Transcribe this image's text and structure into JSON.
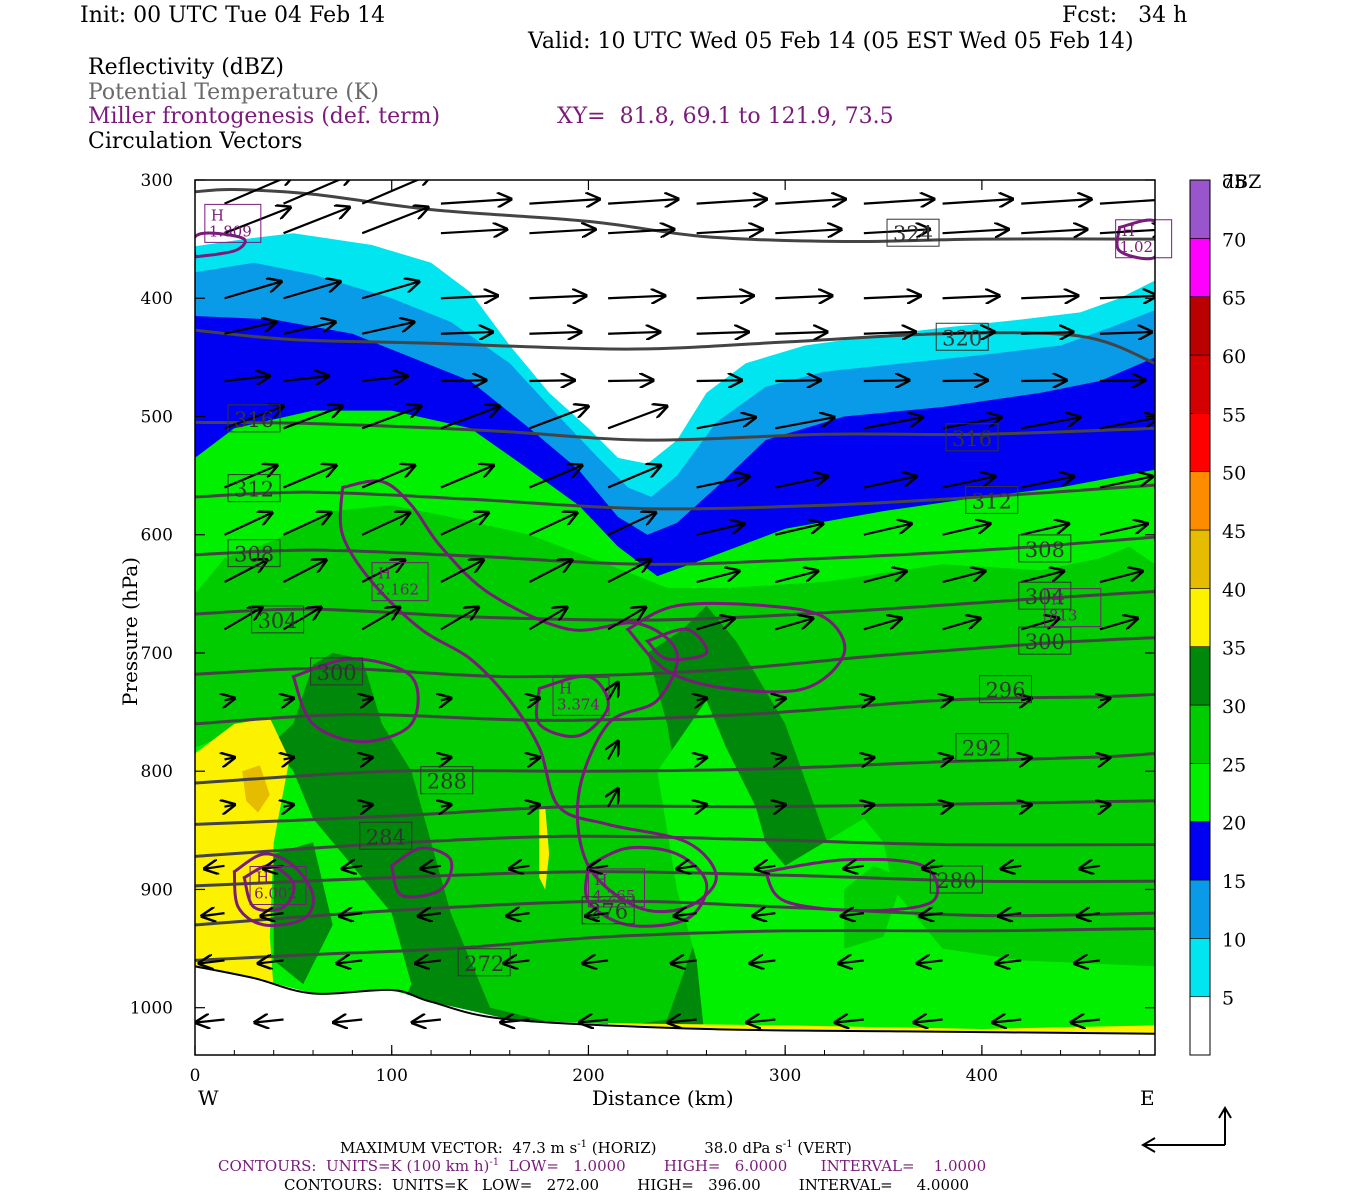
{
  "header": {
    "init": "Init: 00 UTC Tue 04 Feb 14",
    "fcst": "Fcst:   34 h",
    "valid": "Valid: 10 UTC Wed 05 Feb 14 (05 EST Wed 05 Feb 14)"
  },
  "fields": {
    "reflectivity": "Reflectivity (dBZ)",
    "theta": "Potential Temperature (K)",
    "miller": "Miller frontogenesis (def. term)",
    "xy": "XY=  81.8, 69.1 to 121.9, 73.5",
    "vectors": "Circulation Vectors"
  },
  "colors": {
    "theta_line": "#444444",
    "frontogenesis": "#7a1a7a",
    "vectors": "#000000"
  },
  "chart_data": {
    "type": "cross-section",
    "xlabel": "Distance (km)",
    "ylabel": "Pressure (hPa)",
    "xlim": [
      0,
      488
    ],
    "ylim": [
      1040,
      300
    ],
    "x_ticks": [
      "0",
      "100",
      "200",
      "300",
      "400"
    ],
    "x_tick_values": [
      0,
      100,
      200,
      300,
      400
    ],
    "y_ticks": [
      "300",
      "400",
      "500",
      "600",
      "700",
      "800",
      "900",
      "1000"
    ],
    "y_tick_values": [
      300,
      400,
      500,
      600,
      700,
      800,
      900,
      1000
    ],
    "west_label": "W",
    "east_label": "E",
    "colorbar": {
      "title": "dBZ",
      "levels": [
        "5",
        "10",
        "15",
        "20",
        "25",
        "30",
        "35",
        "40",
        "45",
        "50",
        "55",
        "60",
        "65",
        "70",
        "75"
      ],
      "colors": [
        "#ffffff",
        "#00e5f0",
        "#0a9be8",
        "#0000f2",
        "#00f000",
        "#00cc00",
        "#00880a",
        "#fcf200",
        "#e6bc00",
        "#ff8c00",
        "#ff0000",
        "#d40000",
        "#bb0000",
        "#ff00ff",
        "#9955cc"
      ]
    },
    "theta_contours": [
      {
        "label": "324",
        "value": 324,
        "points": [
          [
            0,
            310
          ],
          [
            20,
            308
          ],
          [
            60,
            312
          ],
          [
            120,
            325
          ],
          [
            200,
            335
          ],
          [
            260,
            348
          ],
          [
            330,
            352
          ],
          [
            400,
            350
          ],
          [
            488,
            350
          ]
        ],
        "label_at": [
          365,
          345
        ]
      },
      {
        "label": "320",
        "value": 320,
        "points": [
          [
            0,
            427
          ],
          [
            50,
            435
          ],
          [
            120,
            438
          ],
          [
            220,
            443
          ],
          [
            300,
            437
          ],
          [
            380,
            430
          ],
          [
            450,
            432
          ],
          [
            488,
            455
          ]
        ],
        "label_at": [
          390,
          433
        ]
      },
      {
        "label": "316",
        "value": 316,
        "points": [
          [
            0,
            505
          ],
          [
            60,
            506
          ],
          [
            150,
            512
          ],
          [
            230,
            520
          ],
          [
            320,
            515
          ],
          [
            400,
            515
          ],
          [
            488,
            510
          ]
        ],
        "label_at": [
          30,
          502
        ],
        "label2": "316",
        "label2_at": [
          395,
          518
        ]
      },
      {
        "label": "312",
        "value": 312,
        "points": [
          [
            0,
            568
          ],
          [
            60,
            564
          ],
          [
            140,
            570
          ],
          [
            230,
            578
          ],
          [
            320,
            575
          ],
          [
            400,
            568
          ],
          [
            488,
            558
          ]
        ],
        "label_at": [
          30,
          561
        ],
        "label2": "312",
        "label2_at": [
          405,
          571
        ]
      },
      {
        "label": "308",
        "value": 308,
        "points": [
          [
            0,
            617
          ],
          [
            60,
            613
          ],
          [
            140,
            618
          ],
          [
            230,
            625
          ],
          [
            320,
            620
          ],
          [
            410,
            612
          ],
          [
            488,
            602
          ]
        ],
        "label_at": [
          30,
          616
        ],
        "label2": "308",
        "label2_at": [
          432,
          612
        ]
      },
      {
        "label": "304",
        "value": 304,
        "points": [
          [
            0,
            667
          ],
          [
            60,
            663
          ],
          [
            150,
            670
          ],
          [
            240,
            672
          ],
          [
            330,
            665
          ],
          [
            420,
            655
          ],
          [
            488,
            648
          ]
        ],
        "label_at": [
          42,
          672
        ],
        "label2": "304",
        "label2_at": [
          432,
          652
        ]
      },
      {
        "label": "300",
        "value": 300,
        "points": [
          [
            0,
            718
          ],
          [
            70,
            713
          ],
          [
            160,
            720
          ],
          [
            260,
            715
          ],
          [
            350,
            702
          ],
          [
            430,
            692
          ],
          [
            488,
            687
          ]
        ],
        "label_at": [
          72,
          716
        ],
        "label2": "300",
        "label2_at": [
          432,
          690
        ]
      },
      {
        "label": "296",
        "value": 296,
        "points": [
          [
            0,
            760
          ],
          [
            80,
            752
          ],
          [
            180,
            757
          ],
          [
            280,
            752
          ],
          [
            380,
            740
          ],
          [
            460,
            737
          ],
          [
            488,
            735
          ]
        ],
        "label_at": [
          412,
          731
        ]
      },
      {
        "label": "292",
        "value": 292,
        "points": [
          [
            0,
            810
          ],
          [
            100,
            800
          ],
          [
            200,
            800
          ],
          [
            290,
            798
          ],
          [
            380,
            792
          ],
          [
            460,
            788
          ],
          [
            488,
            785
          ]
        ],
        "label_at": [
          400,
          780
        ]
      },
      {
        "label": "288",
        "value": 288,
        "points": [
          [
            0,
            845
          ],
          [
            100,
            838
          ],
          [
            190,
            830
          ],
          [
            290,
            830
          ],
          [
            380,
            828
          ],
          [
            488,
            825
          ]
        ],
        "label_at": [
          128,
          808
        ]
      },
      {
        "label": "284",
        "value": 284,
        "points": [
          [
            0,
            872
          ],
          [
            90,
            862
          ],
          [
            190,
            855
          ],
          [
            290,
            858
          ],
          [
            380,
            862
          ],
          [
            488,
            862
          ]
        ],
        "label_at": [
          97,
          855
        ]
      },
      {
        "label": "280",
        "value": 280,
        "points": [
          [
            0,
            897
          ],
          [
            100,
            890
          ],
          [
            200,
            885
          ],
          [
            300,
            888
          ],
          [
            400,
            893
          ],
          [
            488,
            893
          ]
        ],
        "label_at": [
          387,
          892
        ]
      },
      {
        "label": "276",
        "value": 276,
        "points": [
          [
            0,
            930
          ],
          [
            100,
            918
          ],
          [
            210,
            910
          ],
          [
            300,
            915
          ],
          [
            400,
            922
          ],
          [
            488,
            920
          ]
        ],
        "label_at": [
          210,
          918
        ]
      },
      {
        "label": "272",
        "value": 272,
        "points": [
          [
            0,
            960
          ],
          [
            60,
            955
          ],
          [
            130,
            950
          ],
          [
            210,
            940
          ],
          [
            300,
            935
          ],
          [
            400,
            935
          ],
          [
            488,
            933
          ]
        ],
        "label_at": [
          147,
          962
        ]
      }
    ],
    "frontogenesis_maxima": [
      {
        "label": "H",
        "value": "1.809",
        "at": [
          5,
          335
        ]
      },
      {
        "label": "H",
        "value": "1.02",
        "at": [
          468,
          348
        ]
      },
      {
        "label": "H",
        "value": "2.162",
        "at": [
          90,
          638
        ]
      },
      {
        "label": "H",
        "value": "3.374",
        "at": [
          182,
          735
        ]
      },
      {
        "label": "H",
        "value": "6.002",
        "at": [
          28,
          895
        ]
      },
      {
        "label": "H",
        "value": "4.265",
        "at": [
          200,
          897
        ]
      },
      {
        "label": "H",
        "value": "813",
        "at": [
          432,
          660
        ]
      }
    ],
    "max_vector": {
      "label": "MAXIMUM VECTOR:",
      "horiz": "47.3 m s",
      "horiz_unit": "(HORIZ)",
      "vert": "38.0 dPa s",
      "vert_unit": "(VERT)",
      "exponent": "-1"
    },
    "contour_info_1": {
      "units": "CONTOURS:  UNITS=K (100 km h)",
      "exponent": "-1",
      "rest": "  LOW=   1.0000        HIGH=   6.0000       INTERVAL=    1.0000"
    },
    "contour_info_2": "CONTOURS:  UNITS=K   LOW=   272.00        HIGH=   396.00        INTERVAL=     4.0000"
  }
}
